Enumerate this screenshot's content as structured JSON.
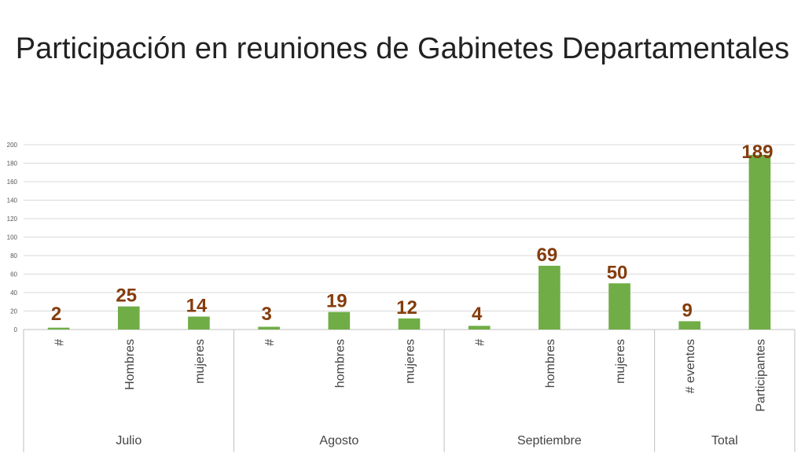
{
  "chart_data": {
    "type": "bar",
    "title": "Participación en reuniones de Gabinetes Departamentales",
    "ylim": [
      0,
      200
    ],
    "yticks": [
      0,
      20,
      40,
      60,
      80,
      100,
      120,
      140,
      160,
      180,
      200
    ],
    "grid": true,
    "legend": "none",
    "categories": [
      "#",
      "Hombres",
      "mujeres",
      "#",
      "hombres",
      "mujeres",
      "#",
      "hombres",
      "mujeres",
      "# eventos",
      "Participantes"
    ],
    "values": [
      2,
      25,
      14,
      3,
      19,
      12,
      4,
      69,
      50,
      9,
      189
    ],
    "groups": [
      {
        "label": "Julio",
        "count": 3
      },
      {
        "label": "Agosto",
        "count": 3
      },
      {
        "label": "Septiembre",
        "count": 3
      },
      {
        "label": "Total",
        "count": 2
      }
    ],
    "colors": {
      "bar": "#70ad47",
      "data_label": "#843c0c",
      "grid": "#d9d9d9",
      "axis": "#bfbfbf"
    }
  }
}
